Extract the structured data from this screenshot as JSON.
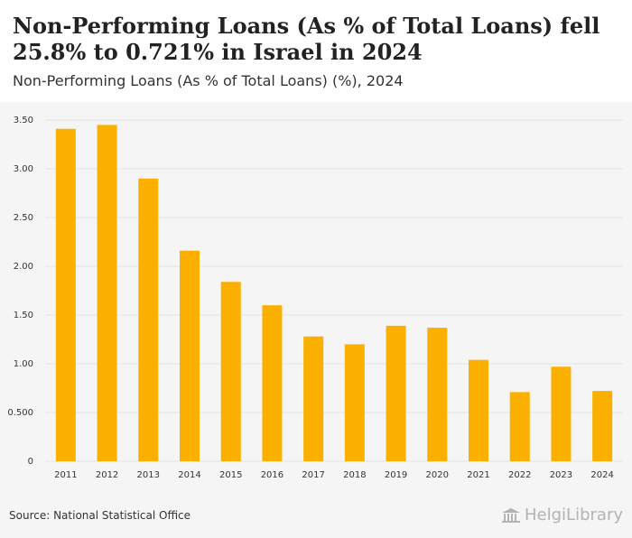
{
  "header": {
    "title": "Non-Performing Loans (As % of Total Loans) fell 25.8% to 0.721% in Israel in 2024",
    "subtitle": "Non-Performing Loans (As % of Total Loans) (%), 2024"
  },
  "footer": {
    "source": "Source: National Statistical Office",
    "brand": "HelgiLibrary"
  },
  "colors": {
    "bar": "#fbb000",
    "grid": "#e2e2e2",
    "plot_background": "#f5f5f5"
  },
  "icons": {
    "brand_logo": "library-building-icon"
  },
  "chart_data": {
    "type": "bar",
    "categories": [
      "2011",
      "2012",
      "2013",
      "2014",
      "2015",
      "2016",
      "2017",
      "2018",
      "2019",
      "2020",
      "2021",
      "2022",
      "2023",
      "2024"
    ],
    "series": [
      {
        "values": [
          3.41,
          3.45,
          2.9,
          2.16,
          1.84,
          1.6,
          1.28,
          1.2,
          1.39,
          1.37,
          1.04,
          0.71,
          0.97,
          0.721
        ]
      }
    ],
    "ylim": [
      0,
      3.5
    ],
    "yticks": [
      0,
      0.5,
      1.0,
      1.5,
      2.0,
      2.5,
      3.0,
      3.5
    ],
    "ytick_labels": [
      "0",
      "0.500",
      "1.00",
      "1.50",
      "2.00",
      "2.50",
      "3.00",
      "3.50"
    ],
    "grid": true,
    "legend": "none"
  }
}
